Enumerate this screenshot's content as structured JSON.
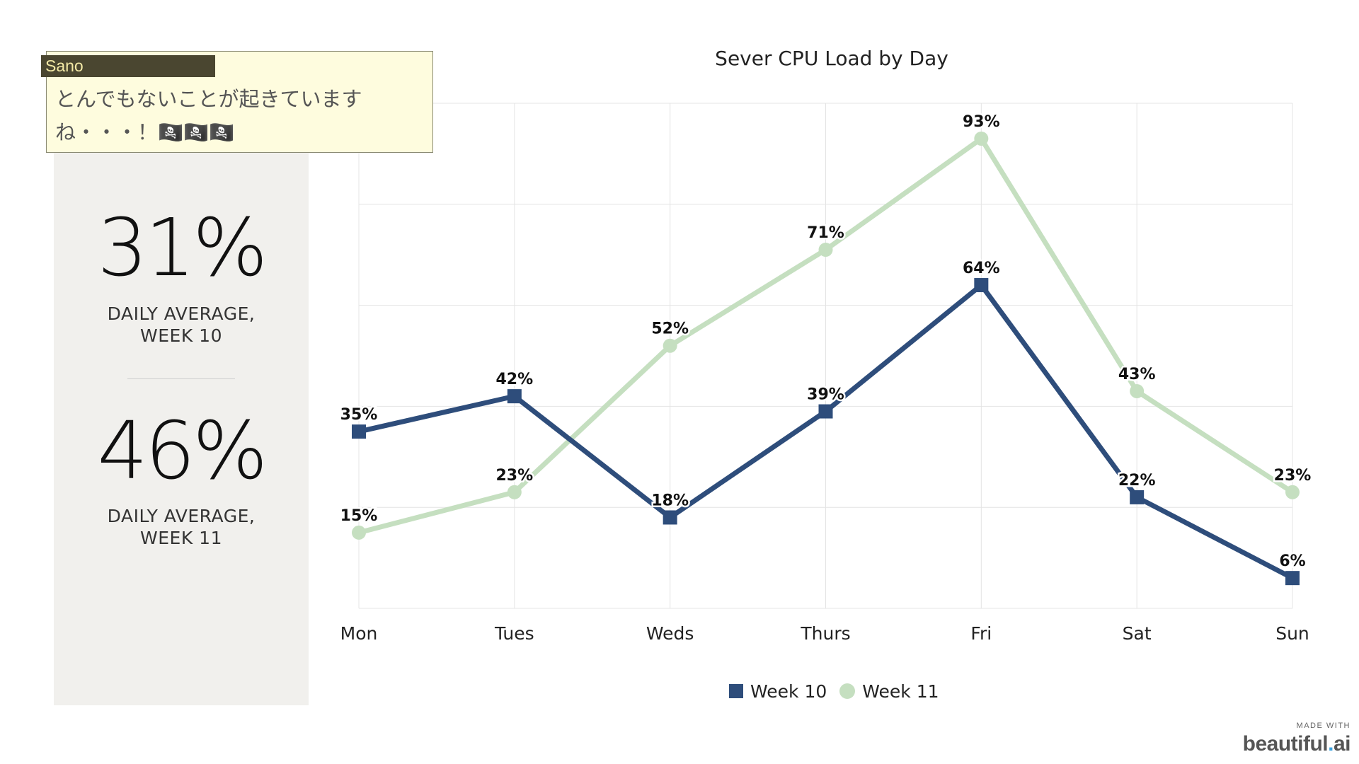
{
  "note": {
    "author": "Sano",
    "text": "とんでもないことが起きています\nね・・・！🏴‍☠️🏴‍☠️🏴‍☠️"
  },
  "stats": [
    {
      "value": "31%",
      "label": "DAILY AVERAGE,\nWEEK 10"
    },
    {
      "value": "46%",
      "label": "DAILY AVERAGE,\nWEEK 11"
    }
  ],
  "watermark": {
    "small": "MADE WITH",
    "brand_a": "beautiful",
    "brand_dot": ".",
    "brand_b": "ai"
  },
  "chart_data": {
    "type": "line",
    "title": "Sever CPU Load by Day",
    "categories": [
      "Mon",
      "Tues",
      "Weds",
      "Thurs",
      "Fri",
      "Sat",
      "Sun"
    ],
    "ylim": [
      0,
      100
    ],
    "grid": true,
    "legend_position": "bottom",
    "series": [
      {
        "name": "Week 10",
        "values": [
          35,
          42,
          18,
          39,
          64,
          22,
          6
        ],
        "labels": [
          "35%",
          "42%",
          "18%",
          "39%",
          "64%",
          "22%",
          "6%"
        ],
        "color": "#2e4d7b",
        "marker": "square"
      },
      {
        "name": "Week 11",
        "values": [
          15,
          23,
          52,
          71,
          93,
          43,
          23
        ],
        "labels": [
          "15%",
          "23%",
          "52%",
          "71%",
          "93%",
          "43%",
          "23%"
        ],
        "color": "#c5dfc0",
        "marker": "circle"
      }
    ]
  }
}
